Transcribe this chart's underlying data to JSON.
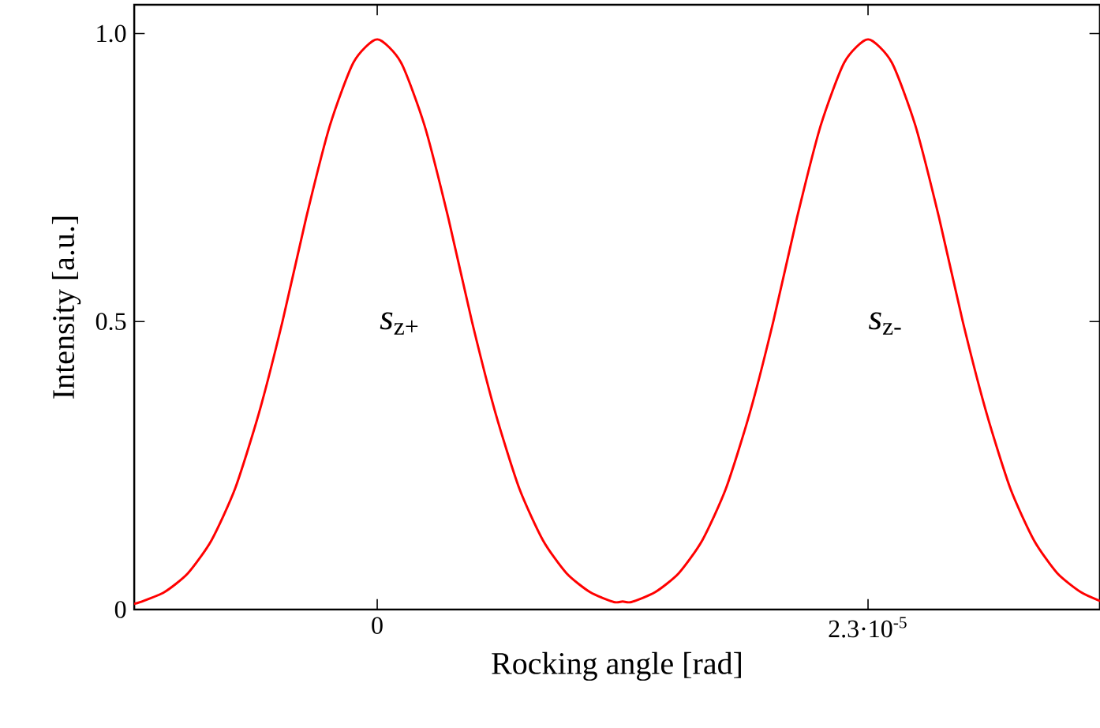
{
  "chart_data": {
    "type": "line",
    "xlabel": "Rocking angle [rad]",
    "ylabel": "Intensity [a.u.]",
    "xlim": [
      -1.139e-05,
      3.387e-05
    ],
    "ylim": [
      0,
      1.05
    ],
    "xticks": [
      0,
      {
        "value": 2.3e-05,
        "label": "2.3·10$^{-5}$"
      }
    ],
    "yticks": [
      0,
      0.5,
      {
        "value": 1,
        "label": "1.0"
      }
    ],
    "annotations": [
      "*s*$_{z+}$",
      "*s*$_{z-}$"
    ],
    "series": [
      {
        "color": "#ff0000",
        "x": [
          -1.139e-05,
          -1.109e-05,
          -9.98e-06,
          -8.87e-06,
          -7.77e-06,
          -6.66e-06,
          -5.55e-06,
          -4.44e-06,
          -3.33e-06,
          -2.22e-06,
          -1.11e-06,
          0,
          1.11e-06,
          2.22e-06,
          3.33e-06,
          4.44e-06,
          5.55e-06,
          6.66e-06,
          7.77e-06,
          8.87e-06,
          9.98e-06,
          1.109e-05,
          1.15e-05,
          1.191e-05,
          1.302e-05,
          1.413e-05,
          1.523e-05,
          1.634e-05,
          1.745e-05,
          1.856e-05,
          1.967e-05,
          2.078e-05,
          2.189e-05,
          2.3e-05,
          2.411e-05,
          2.522e-05,
          2.633e-05,
          2.744e-05,
          2.856e-05,
          2.967e-05,
          3.078e-05,
          3.187e-05,
          3.298e-05,
          3.387e-05
        ],
        "values": [
          0.01,
          0.013,
          0.03,
          0.063,
          0.12,
          0.21,
          0.34,
          0.5,
          0.68,
          0.84,
          0.95,
          0.99,
          0.95,
          0.84,
          0.68,
          0.5,
          0.34,
          0.21,
          0.12,
          0.063,
          0.03,
          0.013,
          0.014,
          0.013,
          0.03,
          0.063,
          0.12,
          0.21,
          0.34,
          0.5,
          0.68,
          0.84,
          0.95,
          0.99,
          0.95,
          0.84,
          0.68,
          0.5,
          0.34,
          0.21,
          0.12,
          0.063,
          0.03,
          0.015
        ]
      }
    ]
  }
}
